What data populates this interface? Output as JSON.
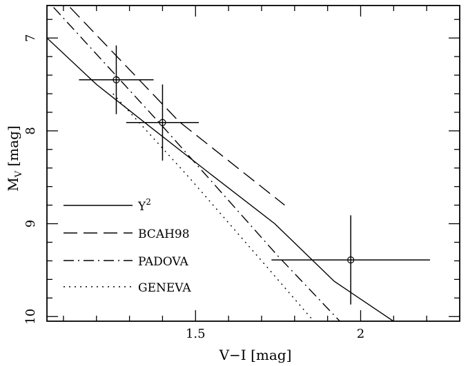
{
  "chart_data": {
    "type": "line",
    "xlabel": "V−I [mag]",
    "ylabel_main": "M",
    "ylabel_sub": "V",
    "ylabel_unit": " [mag]",
    "xlim": [
      1.05,
      2.3
    ],
    "ylim": [
      10.05,
      6.65
    ],
    "y_inverted": true,
    "x_major_ticks": [
      1.5,
      2
    ],
    "x_tick_labels": [
      "1.5",
      "2"
    ],
    "y_major_ticks": [
      7,
      8,
      9,
      10
    ],
    "y_tick_labels": [
      "7",
      "8",
      "9",
      "10"
    ],
    "grid": false,
    "legend_placement": "lower-left",
    "series": [
      {
        "name": "Y",
        "name_sup": "2",
        "style": "solid",
        "x": [
          1.05,
          1.2,
          1.36,
          1.54,
          1.74,
          1.92,
          2.12
        ],
        "y": [
          7.0,
          7.5,
          7.95,
          8.45,
          9.0,
          9.62,
          10.1
        ]
      },
      {
        "name": "BCAH98",
        "style": "dashed",
        "x": [
          1.12,
          1.45,
          1.77
        ],
        "y": [
          6.67,
          7.9,
          8.8
        ]
      },
      {
        "name": "PADOVA",
        "style": "dashdot",
        "x": [
          1.07,
          1.4,
          1.75,
          1.95
        ],
        "y": [
          6.67,
          7.95,
          9.35,
          10.1
        ]
      },
      {
        "name": "GENEVA",
        "style": "dotted",
        "x": [
          1.25,
          1.48,
          1.7,
          1.87
        ],
        "y": [
          7.6,
          8.5,
          9.4,
          10.1
        ]
      }
    ],
    "data_points": [
      {
        "x": 1.26,
        "y": 7.45,
        "xerr": 0.113,
        "yerr": 0.37
      },
      {
        "x": 1.4,
        "y": 7.91,
        "xerr": 0.11,
        "yerr": 0.41
      },
      {
        "x": 1.97,
        "y": 9.39,
        "xerr": 0.24,
        "yerr": 0.48
      }
    ]
  }
}
